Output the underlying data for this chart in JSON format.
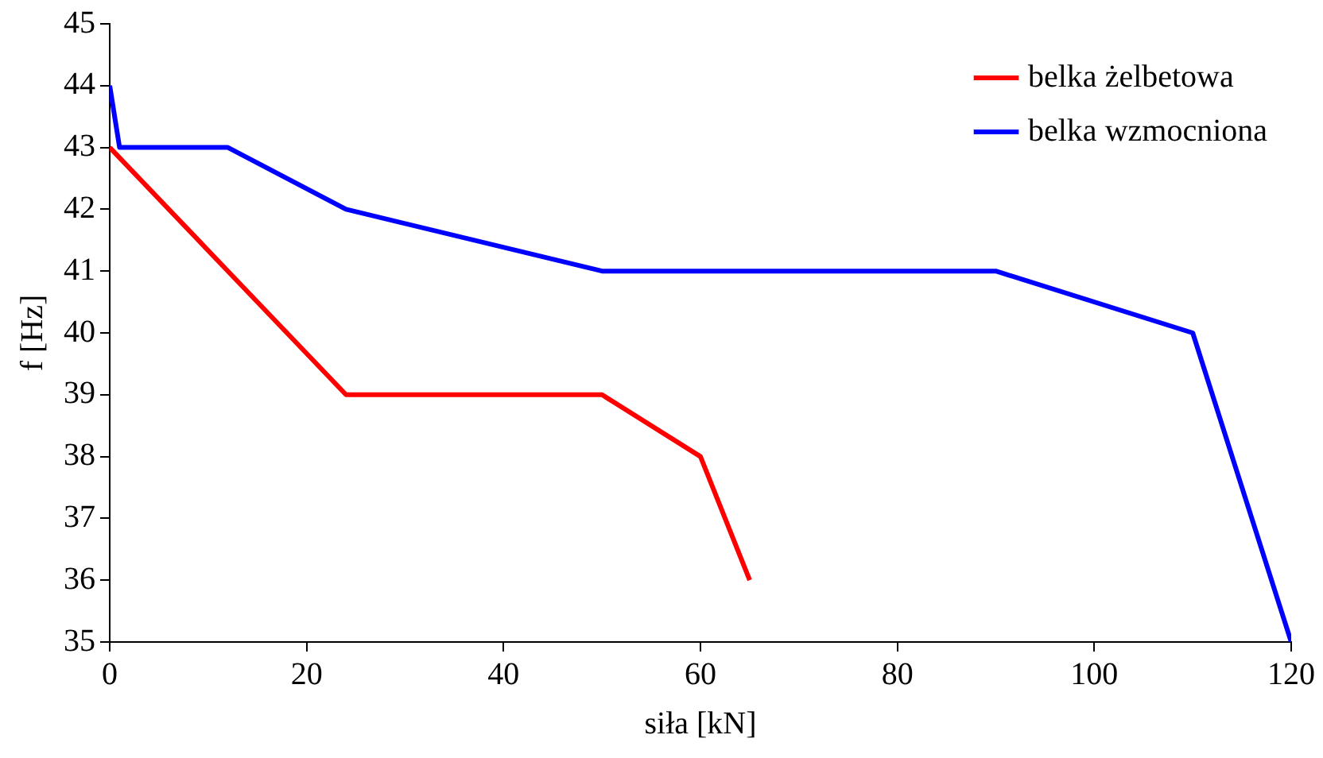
{
  "chart_data": {
    "type": "line",
    "xlabel": "siła [kN]",
    "ylabel": "f [Hz]",
    "xlim": [
      0,
      120
    ],
    "xticks": [
      0,
      20,
      40,
      60,
      80,
      100,
      120
    ],
    "ylim": [
      35,
      45
    ],
    "yticks": [
      35,
      36,
      37,
      38,
      39,
      40,
      41,
      42,
      43,
      44,
      45
    ],
    "grid": false,
    "legend": "top right",
    "marker": "none",
    "line_style": "solid",
    "series": [
      {
        "name": "belka żelbetowa",
        "color": "#ff0000",
        "x": [
          0,
          12,
          24,
          50,
          60,
          65
        ],
        "values": [
          43,
          41,
          39,
          39,
          38,
          36
        ]
      },
      {
        "name": "belka wzmocniona",
        "color": "#0000ff",
        "x": [
          0,
          1,
          12,
          24,
          50,
          90,
          110,
          120
        ],
        "values": [
          44,
          43,
          43,
          42,
          41,
          41,
          40,
          35
        ]
      }
    ]
  }
}
